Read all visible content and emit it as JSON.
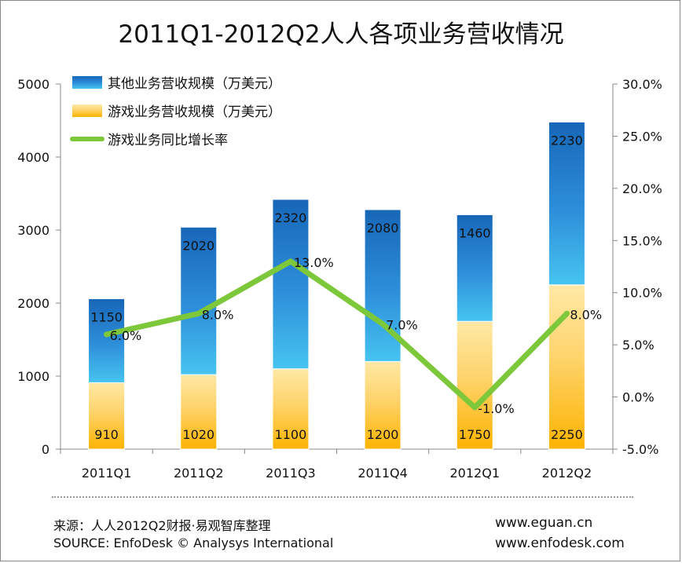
{
  "chart_data": {
    "type": "bar",
    "title": "2011Q1-2012Q2人人各项业务营收情况",
    "categories": [
      "2011Q1",
      "2011Q2",
      "2011Q3",
      "2011Q4",
      "2012Q1",
      "2012Q2"
    ],
    "series": [
      {
        "name": "游戏业务营收规模（万美元）",
        "kind": "stacked-bar",
        "axis": "left",
        "values": [
          910,
          1020,
          1100,
          1200,
          1750,
          2250
        ],
        "color": "#FDB813"
      },
      {
        "name": "其他业务营收规模（万美元）",
        "kind": "stacked-bar",
        "axis": "left",
        "values": [
          1150,
          2020,
          2320,
          2080,
          1460,
          2230
        ],
        "color": "#1F7BC8"
      },
      {
        "name": "游戏业务同比增长率",
        "kind": "line",
        "axis": "right",
        "values": [
          6.0,
          8.0,
          13.0,
          7.0,
          -1.0,
          8.0
        ],
        "labels": [
          "6.0%",
          "8.0%",
          "13.0%",
          "7.0%",
          "-1.0%",
          "8.0%"
        ],
        "color": "#7DC73A"
      }
    ],
    "left_axis": {
      "ylim": [
        0,
        5000
      ],
      "ticks": [
        "0",
        "1000",
        "2000",
        "3000",
        "4000",
        "5000"
      ]
    },
    "right_axis": {
      "ylim": [
        -5,
        30
      ],
      "ticks": [
        "-5.0%",
        "0.0%",
        "5.0%",
        "10.0%",
        "15.0%",
        "20.0%",
        "25.0%",
        "30.0%"
      ]
    },
    "legend_position": "top-left",
    "grid": false
  },
  "footer": {
    "source_cn": "来源：人人2012Q2财报·易观智库整理",
    "source_en": "SOURCE: EnfoDesk © Analysys International",
    "site1": "www.eguan.cn",
    "site2": "www.enfodesk.com"
  }
}
